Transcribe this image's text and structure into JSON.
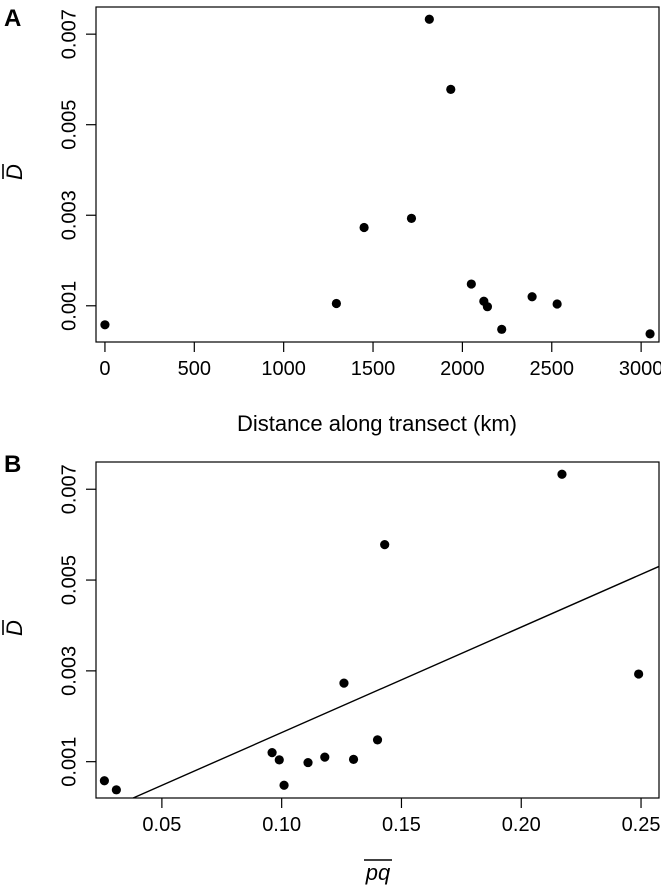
{
  "chart_data": [
    {
      "type": "scatter",
      "panel_label": "A",
      "xlabel": "Distance along transect (km)",
      "ylabel": "D",
      "ylabel_overline": true,
      "xlim": [
        -50,
        3100
      ],
      "ylim": [
        0.0002,
        0.0076
      ],
      "xticks": [
        0,
        500,
        1000,
        1500,
        2000,
        2500,
        3000
      ],
      "xtick_labels": [
        "0",
        "500",
        "1000",
        "1500",
        "2000",
        "2500",
        "3000"
      ],
      "yticks": [
        0.001,
        0.003,
        0.005,
        0.007
      ],
      "ytick_labels": [
        "0.001",
        "0.003",
        "0.005",
        "0.007"
      ],
      "grid": false,
      "points": [
        {
          "x": 0,
          "y": 0.00058
        },
        {
          "x": 1295,
          "y": 0.00105
        },
        {
          "x": 1450,
          "y": 0.00273
        },
        {
          "x": 1715,
          "y": 0.00293
        },
        {
          "x": 1815,
          "y": 0.00733
        },
        {
          "x": 1935,
          "y": 0.00578
        },
        {
          "x": 2050,
          "y": 0.00148
        },
        {
          "x": 2120,
          "y": 0.0011
        },
        {
          "x": 2140,
          "y": 0.00098
        },
        {
          "x": 2220,
          "y": 0.00048
        },
        {
          "x": 2390,
          "y": 0.0012
        },
        {
          "x": 2530,
          "y": 0.00104
        },
        {
          "x": 3050,
          "y": 0.00038
        }
      ]
    },
    {
      "type": "scatter",
      "panel_label": "B",
      "xlabel": "pq",
      "xlabel_overline": true,
      "ylabel": "D",
      "ylabel_overline": true,
      "xlim": [
        0.0225,
        0.2575
      ],
      "ylim": [
        0.0002,
        0.0076
      ],
      "xticks": [
        0.05,
        0.1,
        0.15,
        0.2,
        0.25
      ],
      "xtick_labels": [
        "0.05",
        "0.10",
        "0.15",
        "0.20",
        "0.25"
      ],
      "yticks": [
        0.001,
        0.003,
        0.005,
        0.007
      ],
      "ytick_labels": [
        "0.001",
        "0.003",
        "0.005",
        "0.007"
      ],
      "grid": false,
      "points": [
        {
          "x": 0.026,
          "y": 0.00058
        },
        {
          "x": 0.031,
          "y": 0.00038
        },
        {
          "x": 0.096,
          "y": 0.0012
        },
        {
          "x": 0.099,
          "y": 0.00104
        },
        {
          "x": 0.101,
          "y": 0.00048
        },
        {
          "x": 0.111,
          "y": 0.00098
        },
        {
          "x": 0.118,
          "y": 0.0011
        },
        {
          "x": 0.126,
          "y": 0.00273
        },
        {
          "x": 0.13,
          "y": 0.00105
        },
        {
          "x": 0.14,
          "y": 0.00148
        },
        {
          "x": 0.143,
          "y": 0.00578
        },
        {
          "x": 0.217,
          "y": 0.00733
        },
        {
          "x": 0.249,
          "y": 0.00293
        }
      ],
      "fit_line": {
        "x": [
          0.038,
          0.2575
        ],
        "y": [
          0.0002,
          0.0053
        ]
      }
    }
  ]
}
